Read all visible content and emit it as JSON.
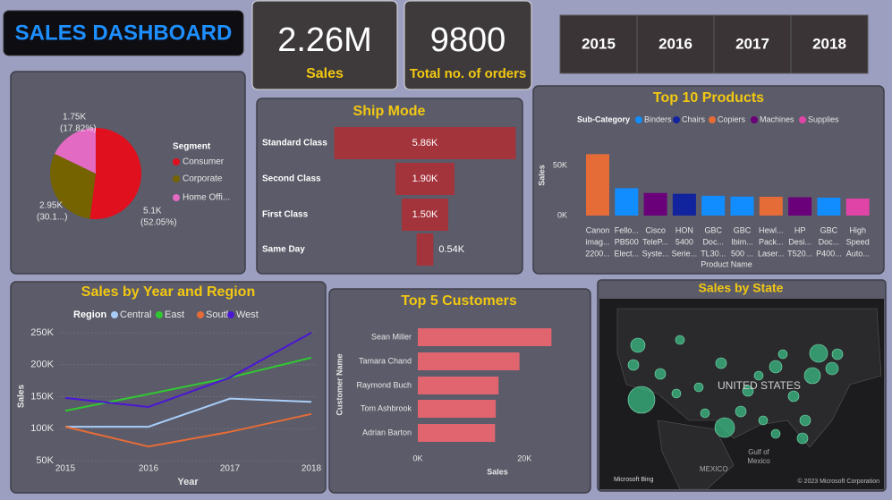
{
  "title": "SALES DASHBOARD",
  "kpis": [
    {
      "value": "2.26M",
      "label": "Sales"
    },
    {
      "value": "9800",
      "label": "Total no. of orders"
    }
  ],
  "year_slicer": [
    "2015",
    "2016",
    "2017",
    "2018"
  ],
  "chart_data": [
    {
      "type": "pie",
      "legend_title": "Segment",
      "categories": [
        "Consumer",
        "Corporate",
        "Home Offi..."
      ],
      "values": [
        5100,
        2950,
        1750
      ],
      "value_labels": [
        "5.1K",
        "2.95K",
        "1.75K"
      ],
      "percent_labels": [
        "(52.05%)",
        "(30.1...)",
        "(17.82%)"
      ],
      "colors": [
        "#e0101e",
        "#756300",
        "#e36ac2"
      ]
    },
    {
      "type": "funnel",
      "title": "Ship Mode",
      "categories": [
        "Standard Class",
        "Second Class",
        "First Class",
        "Same Day"
      ],
      "values": [
        5860,
        1900,
        1500,
        540
      ],
      "value_labels": [
        "5.86K",
        "1.90K",
        "1.50K",
        "0.54K"
      ],
      "color": "#a4343c"
    },
    {
      "type": "bar",
      "title": "Top 10 Products",
      "legend_title": "Sub-Category",
      "series": [
        {
          "name": "Binders",
          "color": "#118dff"
        },
        {
          "name": "Chairs",
          "color": "#12239e"
        },
        {
          "name": "Copiers",
          "color": "#e66c37"
        },
        {
          "name": "Machines",
          "color": "#6b007b"
        },
        {
          "name": "Supplies",
          "color": "#e044a7"
        }
      ],
      "categories": [
        [
          "Canon",
          "imag...",
          "2200..."
        ],
        [
          "Fello...",
          "PB500",
          "Elect..."
        ],
        [
          "Cisco",
          "TeleP...",
          "Syste..."
        ],
        [
          "HON",
          "5400",
          "Serie..."
        ],
        [
          "GBC",
          "Doc...",
          "TL30..."
        ],
        [
          "GBC",
          "Ibim...",
          "500 ..."
        ],
        [
          "Hewl...",
          "Pack...",
          "Laser..."
        ],
        [
          "HP",
          "Desi...",
          "T520..."
        ],
        [
          "GBC",
          "Doc...",
          "P400..."
        ],
        [
          "High",
          "Speed",
          "Auto..."
        ]
      ],
      "values": [
        61600,
        27450,
        22640,
        21870,
        19820,
        19020,
        18840,
        18370,
        17960,
        17030
      ],
      "sub_category": [
        2,
        0,
        3,
        1,
        0,
        0,
        2,
        3,
        0,
        4
      ],
      "ylim": [
        0,
        70000
      ],
      "yticks": [
        {
          "value": 0,
          "label": "0K"
        },
        {
          "value": 50000,
          "label": "50K"
        }
      ],
      "y_label": "Sales",
      "x_label": "Product Name"
    },
    {
      "type": "line",
      "title": "Sales by Year and Region",
      "legend_title": "Region",
      "categories": [
        "2015",
        "2016",
        "2017",
        "2018"
      ],
      "series": [
        {
          "name": "Central",
          "color": "#a9cdf7",
          "values": [
            103000,
            103000,
            147000,
            142000
          ]
        },
        {
          "name": "East",
          "color": "#32c832",
          "values": [
            128000,
            154000,
            180000,
            211000
          ]
        },
        {
          "name": "South",
          "color": "#e66c37",
          "values": [
            103000,
            72000,
            95000,
            123000
          ]
        },
        {
          "name": "West",
          "color": "#4b17d4",
          "values": [
            148000,
            134000,
            180000,
            250000
          ]
        }
      ],
      "ylim": [
        50000,
        250000
      ],
      "yticks": [
        {
          "value": 50000,
          "label": "50K"
        },
        {
          "value": 100000,
          "label": "100K"
        },
        {
          "value": 150000,
          "label": "150K"
        },
        {
          "value": 200000,
          "label": "200K"
        },
        {
          "value": 250000,
          "label": "250K"
        }
      ],
      "grid": true,
      "y_label": "Sales",
      "x_label": "Year"
    },
    {
      "type": "hbar",
      "title": "Top 5 Customers",
      "categories": [
        "Sean Miller",
        "Tamara Chand",
        "Raymond Buch",
        "Tom Ashbrook",
        "Adrian Barton"
      ],
      "values": [
        25040,
        19050,
        15120,
        14600,
        14470
      ],
      "color": "#e0656f",
      "xlim": [
        0,
        29000
      ],
      "xticks": [
        {
          "value": 0,
          "label": "0K"
        },
        {
          "value": 20000,
          "label": "20K"
        }
      ],
      "y_label": "Customer Name",
      "x_label": "Sales"
    }
  ],
  "map": {
    "title": "Sales by State",
    "country": "UNITED STATES",
    "neighbor": "MEXICO",
    "gulf": [
      "Gulf of",
      "Mexico"
    ],
    "provider": "Microsoft Bing",
    "copyright": "© 2023 Microsoft Corporation"
  }
}
